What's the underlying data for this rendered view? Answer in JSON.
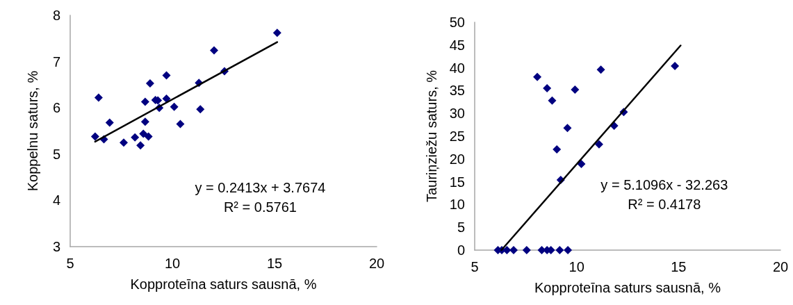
{
  "chart_data": [
    {
      "type": "scatter",
      "xlabel": "Kopproteīna saturs sausnā, %",
      "ylabel": "Koppelnu saturs, %",
      "xlim": [
        5,
        20
      ],
      "xticks": [
        5,
        10,
        15,
        20
      ],
      "ylim": [
        3,
        8
      ],
      "yticks": [
        3,
        4,
        5,
        6,
        7,
        8
      ],
      "grid": false,
      "marker": "diamond",
      "annotations": [
        "y = 0.2413x + 3.7674",
        "R² = 0.5761"
      ],
      "series": [
        {
          "color": "#000080",
          "x": [
            6.22,
            6.39,
            6.65,
            6.93,
            7.62,
            8.17,
            8.44,
            8.58,
            8.83,
            8.67,
            8.67,
            8.91,
            9.17,
            9.29,
            9.36,
            9.71,
            9.71,
            10.09,
            10.39,
            11.3,
            11.37,
            12.04,
            12.55,
            15.13
          ],
          "values": [
            5.38,
            6.22,
            5.32,
            5.68,
            5.25,
            5.36,
            5.19,
            5.44,
            5.38,
            5.7,
            6.13,
            6.53,
            6.17,
            6.16,
            6.0,
            6.7,
            6.2,
            6.02,
            5.65,
            6.54,
            5.97,
            7.24,
            6.79,
            7.62
          ]
        },
        {
          "type": "line",
          "color": "#000000",
          "marker": "none",
          "line_style": "solid",
          "x": [
            6.22,
            15.13
          ],
          "values": [
            5.27,
            7.42
          ]
        }
      ]
    },
    {
      "type": "scatter",
      "xlabel": "Kopproteīna saturs sausnā, %",
      "ylabel": "Tauriņziežu saturs, %",
      "xlim": [
        5,
        20
      ],
      "xticks": [
        5,
        10,
        15,
        20
      ],
      "ylim": [
        0,
        50
      ],
      "yticks": [
        0,
        5,
        10,
        15,
        20,
        25,
        30,
        35,
        40,
        45,
        50
      ],
      "grid": false,
      "marker": "diamond",
      "annotations": [
        "y = 5.1096x - 32.263",
        "R² = 0.4178"
      ],
      "series": [
        {
          "color": "#000080",
          "x": [
            8.07,
            8.55,
            8.8,
            9.92,
            9.55,
            11.19,
            14.82,
            12.31,
            11.84,
            11.1,
            9.03,
            9.22,
            10.23,
            6.14,
            6.33,
            6.58,
            6.91,
            7.55,
            8.29,
            8.55,
            8.74,
            9.17,
            9.57
          ],
          "values": [
            38,
            35.5,
            32.8,
            35.2,
            26.8,
            39.6,
            40.4,
            30.3,
            27.3,
            23.2,
            22.1,
            15.4,
            18.9,
            0,
            0,
            0,
            0,
            0,
            0,
            0,
            0,
            0,
            0
          ]
        },
        {
          "type": "line",
          "color": "#000000",
          "marker": "none",
          "line_style": "solid",
          "x": [
            6.31,
            15.1
          ],
          "values": [
            0,
            44.9
          ]
        }
      ]
    }
  ]
}
